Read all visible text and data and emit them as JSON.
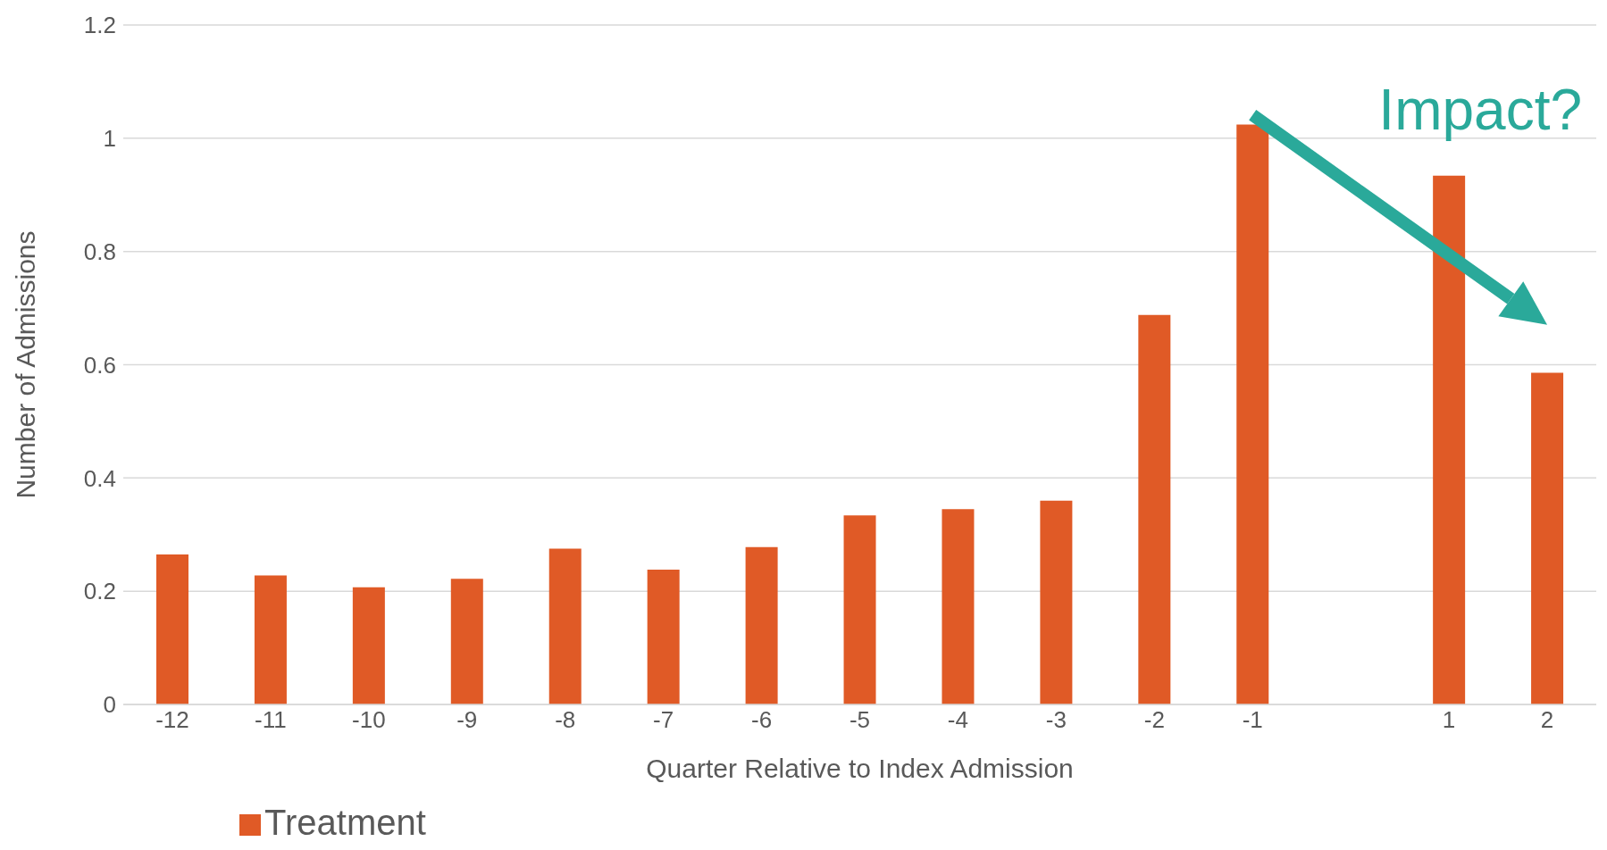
{
  "chart_data": {
    "type": "bar",
    "xlabel": "Quarter Relative to Index Admission",
    "ylabel": "Number of Admissions",
    "categories": [
      "-12",
      "-11",
      "-10",
      "-9",
      "-8",
      "-7",
      "-6",
      "-5",
      "-4",
      "-3",
      "-2",
      "-1",
      null,
      "1",
      "2"
    ],
    "series": [
      {
        "name": "Treatment",
        "color": "#e05a26",
        "values": [
          0.265,
          0.228,
          0.207,
          0.222,
          0.275,
          0.238,
          0.278,
          0.334,
          0.345,
          0.36,
          0.688,
          1.024,
          null,
          0.934,
          0.586
        ]
      }
    ],
    "ylim": [
      0,
      1.2
    ],
    "yticks": [
      0,
      0.2,
      0.4,
      0.6,
      0.8,
      1,
      1.2
    ],
    "grid": "y",
    "legend": "bottom left",
    "annotations": [
      "Impact?"
    ]
  }
}
